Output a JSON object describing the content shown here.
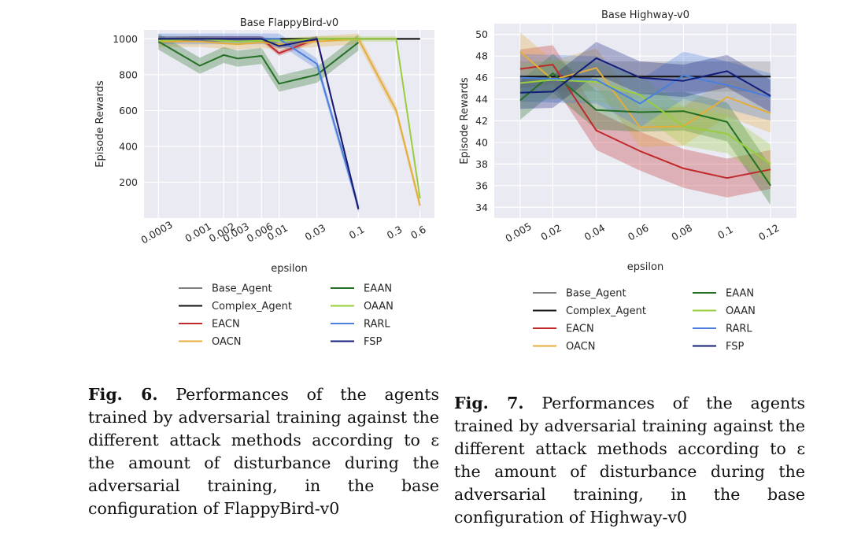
{
  "chart_data": [
    {
      "type": "line",
      "title": "Base FlappyBird-v0",
      "xlabel": "epsilon",
      "ylabel": "Episode Rewards",
      "x_scale": "log",
      "x_ticks": [
        "0.0003",
        "0.001",
        "0.002",
        "0.003",
        "0.006",
        "0.01",
        "0.03",
        "0.1",
        "0.3",
        "0.6"
      ],
      "x": [
        0.0003,
        0.001,
        0.002,
        0.003,
        0.006,
        0.01,
        0.03,
        0.1,
        0.3,
        0.6
      ],
      "y_ticks": [
        200,
        400,
        600,
        800,
        1000
      ],
      "ylim": [
        0,
        1050
      ],
      "xlim": [
        0.0003,
        0.6
      ],
      "grid": true,
      "legend": "below",
      "series": [
        {
          "name": "Base_Agent",
          "color": "#7f7f7f",
          "values": [
            1000,
            1000,
            1000,
            1000,
            1000,
            1000,
            1000,
            1000,
            1000,
            1000
          ],
          "band": 0
        },
        {
          "name": "Complex_Agent",
          "color": "#111111",
          "values": [
            1000,
            1000,
            1000,
            1000,
            1000,
            1000,
            1000,
            1000,
            1000,
            1000
          ],
          "band": 0
        },
        {
          "name": "EACN",
          "color": "#c0282a",
          "values": [
            990,
            1000,
            1000,
            1000,
            1000,
            920,
            1000,
            50,
            null,
            null
          ],
          "band": 15
        },
        {
          "name": "OACN",
          "color": "#e5ad3a",
          "values": [
            985,
            985,
            975,
            970,
            980,
            970,
            985,
            1000,
            600,
            70
          ],
          "band": 30
        },
        {
          "name": "EAAN",
          "color": "#257025",
          "values": [
            985,
            850,
            910,
            890,
            905,
            750,
            800,
            980,
            null,
            null
          ],
          "band": 45
        },
        {
          "name": "OAAN",
          "color": "#9acd3c",
          "values": [
            990,
            1000,
            990,
            985,
            990,
            990,
            1000,
            1000,
            1000,
            110
          ],
          "band": 15
        },
        {
          "name": "RARL",
          "color": "#4a7fdc",
          "values": [
            1000,
            1000,
            1000,
            1000,
            1000,
            1000,
            860,
            60,
            null,
            null
          ],
          "band": 30
        },
        {
          "name": "FSP",
          "color": "#141e78",
          "values": [
            1000,
            1000,
            1000,
            1000,
            1000,
            960,
            1000,
            50,
            null,
            null
          ],
          "band": 15
        }
      ]
    },
    {
      "type": "line",
      "title": "Base Highway-v0",
      "xlabel": "epsilon",
      "ylabel": "Episode Rewards",
      "x_ticks": [
        "0.005",
        "0.02",
        "0.04",
        "0.06",
        "0.08",
        "0.1",
        "0.12"
      ],
      "x": [
        0.005,
        0.02,
        0.04,
        0.06,
        0.08,
        0.1,
        0.12
      ],
      "y_ticks": [
        34,
        36,
        38,
        40,
        42,
        44,
        46,
        48,
        50
      ],
      "ylim": [
        33,
        51
      ],
      "xlim": [
        0.0,
        0.125
      ],
      "grid": true,
      "legend": "below",
      "series": [
        {
          "name": "Base_Agent",
          "color": "#7f7f7f",
          "values": [
            46.1,
            46.1,
            46.1,
            46.1,
            46.1,
            46.1,
            46.1
          ],
          "band": 1.4
        },
        {
          "name": "Complex_Agent",
          "color": "#111111",
          "values": [
            46.1,
            46.1,
            46.1,
            46.1,
            46.1,
            46.1,
            46.1
          ],
          "band": 0
        },
        {
          "name": "EACN",
          "color": "#c0282a",
          "values": [
            46.8,
            47.2,
            41.1,
            39.2,
            37.6,
            36.7,
            37.5
          ],
          "band": 1.8
        },
        {
          "name": "OACN",
          "color": "#e5ad3a",
          "values": [
            48.4,
            45.8,
            46.9,
            41.4,
            41.5,
            44.2,
            42.7
          ],
          "band": 1.8
        },
        {
          "name": "EAAN",
          "color": "#257025",
          "values": [
            43.9,
            46.4,
            43.0,
            42.8,
            42.9,
            41.9,
            36.0
          ],
          "band": 1.8
        },
        {
          "name": "OAAN",
          "color": "#9acd3c",
          "values": [
            45.5,
            45.8,
            45.6,
            44.4,
            41.5,
            40.8,
            38.0
          ],
          "band": 1.8
        },
        {
          "name": "RARL",
          "color": "#4a7fdc",
          "values": [
            46.0,
            45.9,
            45.8,
            43.6,
            46.2,
            45.3,
            44.2
          ],
          "band": 2.2
        },
        {
          "name": "FSP",
          "color": "#141e78",
          "values": [
            44.6,
            44.7,
            47.8,
            46.0,
            45.7,
            46.6,
            44.3
          ],
          "band": 1.5
        }
      ]
    }
  ],
  "captions": [
    {
      "label": "Fig. 6.",
      "text": "Performances of the agents trained by adversarial training against the different attack methods according to ε the amount of disturbance during the adversarial training, in the base configuration of FlappyBird-v0"
    },
    {
      "label": "Fig. 7.",
      "text": "Performances of the agents trained by adversarial training against the different attack methods according to ε the amount of disturbance during the adversarial training, in the base configuration of Highway-v0"
    }
  ]
}
